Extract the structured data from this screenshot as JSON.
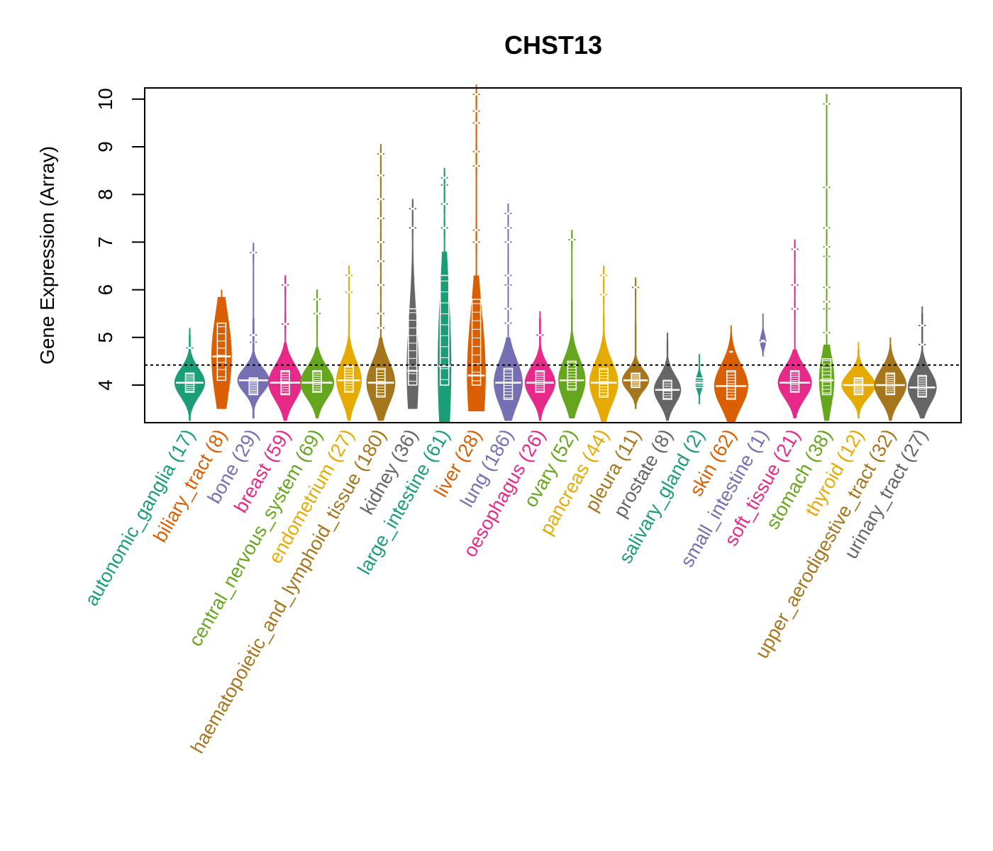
{
  "chart_data": {
    "type": "violin",
    "title": "CHST13",
    "xlabel": "",
    "ylabel": "Gene Expression (Array)",
    "ylim": [
      3.2,
      10.25
    ],
    "yticks": [
      4,
      5,
      6,
      7,
      8,
      9,
      10
    ],
    "reference_line": 4.42,
    "grid": false,
    "legend": "none",
    "categories": [
      {
        "name": "autonomic_ganglia",
        "n": 17,
        "label": "autonomic_ganglia (17)",
        "color": "#1B9E77",
        "median": 4.05,
        "q1": 3.85,
        "q3": 4.25,
        "min": 3.25,
        "max": 5.05,
        "width": 0.9,
        "outliers": [
          4.78
        ]
      },
      {
        "name": "biliary_tract",
        "n": 8,
        "label": "biliary_tract (8)",
        "color": "#D95F02",
        "median": 4.6,
        "q1": 4.1,
        "q3": 5.3,
        "min": 3.5,
        "max": 5.85,
        "width": 0.6,
        "outliers": []
      },
      {
        "name": "bone",
        "n": 29,
        "label": "bone (29)",
        "color": "#7570B3",
        "median": 4.1,
        "q1": 3.8,
        "q3": 4.15,
        "min": 3.3,
        "max": 5.4,
        "width": 0.95,
        "outliers": [
          4.9,
          5.05,
          6.78
        ]
      },
      {
        "name": "breast",
        "n": 59,
        "label": "breast (59)",
        "color": "#E7298A",
        "median": 4.05,
        "q1": 3.8,
        "q3": 4.3,
        "min": 3.25,
        "max": 4.9,
        "width": 1.0,
        "outliers": [
          5.28,
          6.1
        ]
      },
      {
        "name": "central_nervous_system",
        "n": 69,
        "label": "central_nervous_system (69)",
        "color": "#66A61E",
        "median": 4.05,
        "q1": 3.85,
        "q3": 4.3,
        "min": 3.3,
        "max": 4.8,
        "width": 1.0,
        "outliers": [
          5.5,
          5.8
        ]
      },
      {
        "name": "endometrium",
        "n": 27,
        "label": "endometrium (27)",
        "color": "#E6AB02",
        "median": 4.1,
        "q1": 3.85,
        "q3": 4.4,
        "min": 3.25,
        "max": 5.5,
        "width": 0.75,
        "outliers": [
          5.95,
          6.3
        ]
      },
      {
        "name": "haematopoietic_and_lymphoid_tissue",
        "n": 180,
        "label": "haematopoietic_and_lymphoid_tissue (180)",
        "color": "#A6761D",
        "median": 4.05,
        "q1": 3.75,
        "q3": 4.35,
        "min": 3.25,
        "max": 5.0,
        "width": 0.85,
        "outliers": [
          5.2,
          5.5,
          6.1,
          6.6,
          7.0,
          7.5,
          7.9,
          8.4,
          8.85
        ]
      },
      {
        "name": "kidney",
        "n": 36,
        "label": "kidney (36)",
        "color": "#666666",
        "median": 4.3,
        "q1": 4.0,
        "q3": 5.6,
        "min": 3.5,
        "max": 6.9,
        "width": 0.35,
        "outliers": [
          7.3,
          7.7
        ]
      },
      {
        "name": "large_intestine",
        "n": 61,
        "label": "large_intestine (61)",
        "color": "#1B9E77",
        "median": 4.4,
        "q1": 4.0,
        "q3": 6.3,
        "min": 3.2,
        "max": 6.8,
        "width": 0.4,
        "outliers": [
          7.3,
          7.8,
          8.2,
          8.35
        ]
      },
      {
        "name": "liver",
        "n": 28,
        "label": "liver (28)",
        "color": "#D95F02",
        "median": 4.2,
        "q1": 4.0,
        "q3": 5.8,
        "min": 3.45,
        "max": 6.3,
        "width": 0.55,
        "outliers": [
          7.0,
          7.25,
          8.6,
          8.9,
          9.5,
          9.75,
          10.1
        ]
      },
      {
        "name": "lung",
        "n": 186,
        "label": "lung (186)",
        "color": "#7570B3",
        "median": 4.05,
        "q1": 3.7,
        "q3": 4.35,
        "min": 3.25,
        "max": 5.0,
        "width": 0.85,
        "outliers": [
          5.3,
          5.6,
          6.1,
          6.3,
          7.0,
          7.3,
          7.6
        ]
      },
      {
        "name": "oesophagus",
        "n": 26,
        "label": "oesophagus (26)",
        "color": "#E7298A",
        "median": 4.05,
        "q1": 3.85,
        "q3": 4.3,
        "min": 3.25,
        "max": 5.4,
        "width": 0.9,
        "outliers": [
          5.05
        ]
      },
      {
        "name": "ovary",
        "n": 52,
        "label": "ovary (52)",
        "color": "#66A61E",
        "median": 4.1,
        "q1": 3.9,
        "q3": 4.5,
        "min": 3.3,
        "max": 5.8,
        "width": 0.8,
        "outliers": [
          7.05
        ]
      },
      {
        "name": "pancreas",
        "n": 44,
        "label": "pancreas (44)",
        "color": "#E6AB02",
        "median": 4.05,
        "q1": 3.75,
        "q3": 4.35,
        "min": 3.2,
        "max": 5.5,
        "width": 0.85,
        "outliers": [
          5.9,
          6.3
        ]
      },
      {
        "name": "pleura",
        "n": 11,
        "label": "pleura (11)",
        "color": "#A6761D",
        "median": 4.1,
        "q1": 3.95,
        "q3": 4.25,
        "min": 3.5,
        "max": 5.3,
        "width": 0.8,
        "outliers": [
          6.05
        ]
      },
      {
        "name": "prostate",
        "n": 8,
        "label": "prostate (8)",
        "color": "#666666",
        "median": 3.9,
        "q1": 3.7,
        "q3": 4.1,
        "min": 3.25,
        "max": 4.95,
        "width": 0.8,
        "outliers": []
      },
      {
        "name": "salivary_gland",
        "n": 2,
        "label": "salivary_gland (2)",
        "color": "#1B9E77",
        "median": 4.05,
        "q1": 3.95,
        "q3": 4.15,
        "min": 3.6,
        "max": 4.5,
        "width": 0.25,
        "outliers": []
      },
      {
        "name": "skin",
        "n": 62,
        "label": "skin (62)",
        "color": "#D95F02",
        "median": 3.98,
        "q1": 3.7,
        "q3": 4.3,
        "min": 3.2,
        "max": 5.1,
        "width": 1.0,
        "outliers": [
          4.7
        ]
      },
      {
        "name": "small_intestine",
        "n": 1,
        "label": "small_intestine (1)",
        "color": "#7570B3",
        "median": 4.93,
        "q1": 4.93,
        "q3": 4.93,
        "min": 4.6,
        "max": 5.35,
        "width": 0.18,
        "outliers": [
          4.93
        ]
      },
      {
        "name": "soft_tissue",
        "n": 21,
        "label": "soft_tissue (21)",
        "color": "#E7298A",
        "median": 4.05,
        "q1": 3.85,
        "q3": 4.3,
        "min": 3.3,
        "max": 4.75,
        "width": 1.0,
        "outliers": [
          5.6,
          6.1,
          6.85
        ]
      },
      {
        "name": "stomach",
        "n": 38,
        "label": "stomach (38)",
        "color": "#66A61E",
        "median": 4.1,
        "q1": 3.8,
        "q3": 4.55,
        "min": 3.25,
        "max": 4.85,
        "width": 0.45,
        "outliers": [
          5.1,
          5.6,
          5.75,
          6.05,
          6.7,
          6.9,
          7.3,
          8.15,
          9.9
        ]
      },
      {
        "name": "thyroid",
        "n": 12,
        "label": "thyroid (12)",
        "color": "#E6AB02",
        "median": 4.0,
        "q1": 3.8,
        "q3": 4.15,
        "min": 3.3,
        "max": 4.75,
        "width": 1.0,
        "outliers": []
      },
      {
        "name": "upper_aerodigestive_tract",
        "n": 32,
        "label": "upper_aerodigestive_tract (32)",
        "color": "#A6761D",
        "median": 4.0,
        "q1": 3.8,
        "q3": 4.25,
        "min": 3.25,
        "max": 4.85,
        "width": 0.95,
        "outliers": []
      },
      {
        "name": "urinary_tract",
        "n": 27,
        "label": "urinary_tract (27)",
        "color": "#666666",
        "median": 3.95,
        "q1": 3.75,
        "q3": 4.2,
        "min": 3.3,
        "max": 5.5,
        "width": 0.85,
        "outliers": [
          4.85,
          5.25
        ]
      }
    ]
  }
}
